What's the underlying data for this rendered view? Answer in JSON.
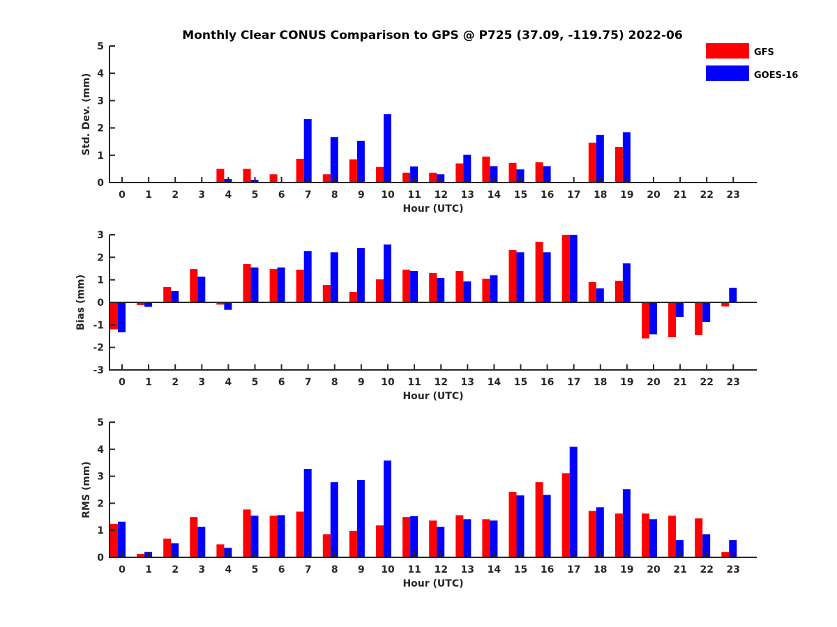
{
  "chart_data": {
    "type": "bar",
    "title": "Monthly Clear CONUS Comparison to GPS @ P725 (37.09, -119.75) 2022-06",
    "legend": {
      "placement": "top-right",
      "entries": [
        {
          "name": "GFS",
          "color": "#ff0000"
        },
        {
          "name": "GOES-16",
          "color": "#0000ff"
        }
      ]
    },
    "categories": [
      "0",
      "1",
      "2",
      "3",
      "4",
      "5",
      "6",
      "7",
      "8",
      "9",
      "10",
      "11",
      "12",
      "13",
      "14",
      "15",
      "16",
      "17",
      "18",
      "19",
      "20",
      "21",
      "22",
      "23"
    ],
    "panels": [
      {
        "id": "std",
        "xlabel": "Hour (UTC)",
        "ylabel": "Std. Dev. (mm)",
        "ylim": [
          0,
          5
        ],
        "yticks": [
          0,
          1,
          2,
          3,
          4,
          5
        ],
        "series": [
          {
            "name": "GFS",
            "values": [
              0,
              0,
              0,
              0,
              0.5,
              0.5,
              0.3,
              0.87,
              0.3,
              0.85,
              0.57,
              0.36,
              0.36,
              0.7,
              0.95,
              0.72,
              0.74,
              0,
              1.46,
              1.3,
              0,
              0,
              0,
              0
            ]
          },
          {
            "name": "GOES-16",
            "values": [
              0,
              0,
              0,
              0,
              0.13,
              0.1,
              0,
              2.32,
              1.66,
              1.53,
              2.5,
              0.59,
              0.3,
              1.02,
              0.6,
              0.48,
              0.6,
              0,
              1.74,
              1.84,
              0,
              0,
              0,
              0
            ]
          }
        ]
      },
      {
        "id": "bias",
        "xlabel": "Hour (UTC)",
        "ylabel": "Bias (mm)",
        "ylim": [
          -3,
          3
        ],
        "yticks": [
          -3,
          -2,
          -1,
          0,
          1,
          2,
          3
        ],
        "series": [
          {
            "name": "GFS",
            "values": [
              -1.2,
              -0.12,
              0.68,
              1.48,
              -0.1,
              1.7,
              1.48,
              1.45,
              0.77,
              0.46,
              1.02,
              1.45,
              1.3,
              1.39,
              1.05,
              2.32,
              2.69,
              3.0,
              0.9,
              0.96,
              -1.6,
              -1.55,
              -1.45,
              -0.18
            ]
          },
          {
            "name": "GOES-16",
            "values": [
              -1.33,
              -0.2,
              0.5,
              1.14,
              -0.33,
              1.55,
              1.55,
              2.28,
              2.22,
              2.41,
              2.57,
              1.39,
              1.08,
              0.93,
              1.2,
              2.22,
              2.22,
              3.0,
              0.62,
              1.73,
              -1.42,
              -0.65,
              -0.87,
              0.65
            ]
          }
        ]
      },
      {
        "id": "rms",
        "xlabel": "Hour (UTC)",
        "ylabel": "RMS (mm)",
        "ylim": [
          0,
          5
        ],
        "yticks": [
          0,
          1,
          2,
          3,
          4,
          5
        ],
        "series": [
          {
            "name": "GFS",
            "values": [
              1.24,
              0.13,
              0.69,
              1.49,
              0.48,
              1.77,
              1.54,
              1.69,
              0.85,
              0.98,
              1.18,
              1.49,
              1.36,
              1.56,
              1.41,
              2.42,
              2.78,
              3.11,
              1.72,
              1.62,
              1.62,
              1.54,
              1.44,
              0.2
            ]
          },
          {
            "name": "GOES-16",
            "values": [
              1.32,
              0.2,
              0.52,
              1.13,
              0.35,
              1.54,
              1.56,
              3.27,
              2.78,
              2.86,
              3.58,
              1.52,
              1.13,
              1.41,
              1.36,
              2.29,
              2.31,
              4.09,
              1.85,
              2.52,
              1.41,
              0.64,
              0.85,
              0.64
            ]
          }
        ]
      }
    ],
    "grid": false
  }
}
